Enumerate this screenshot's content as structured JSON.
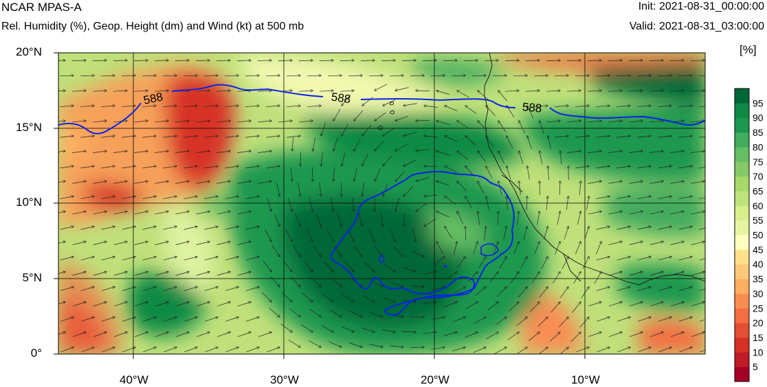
{
  "header": {
    "model": "NCAR MPAS-A",
    "subtitle": "Rel. Humidity (%), Geop. Height (dm) and Wind (kt) at 500 mb",
    "init": "Init: 2021-08-31_00:00:00",
    "valid": "Valid: 2021-08-31_03:00:00"
  },
  "map": {
    "lat_labels": [
      "20°N",
      "15°N",
      "10°N",
      "5°N",
      "0°"
    ],
    "lon_labels": [
      "40°W",
      "30°W",
      "20°W",
      "10°W"
    ],
    "lat_values": [
      20,
      15,
      10,
      5,
      0
    ],
    "lon_values": [
      -40,
      -30,
      -20,
      -10
    ],
    "lon_range": [
      -45,
      -2
    ],
    "lat_range": [
      0,
      20
    ],
    "contour_label": "588",
    "contour_label_count": 3
  },
  "colorbar": {
    "unit": "[%]",
    "levels": [
      "95",
      "90",
      "85",
      "80",
      "75",
      "70",
      "65",
      "60",
      "55",
      "50",
      "45",
      "40",
      "35",
      "30",
      "25",
      "20",
      "15",
      "10",
      "5"
    ],
    "colors": [
      "#a50026",
      "#be1c28",
      "#d73027",
      "#e34f32",
      "#f46d43",
      "#f88d52",
      "#fdae61",
      "#fec87a",
      "#fee08b",
      "#ffffbf",
      "#e6f4a0",
      "#d9ef8b",
      "#bce37c",
      "#a6d96a",
      "#85ca66",
      "#66bd63",
      "#42ab5d",
      "#1a9850",
      "#0f8a45",
      "#006837"
    ]
  },
  "chart_data": {
    "type": "heatmap",
    "title": "Rel. Humidity (%), Geop. Height (dm) and Wind (kt) at 500 mb",
    "xlabel": "",
    "ylabel": "",
    "x_ticks": [
      "40°W",
      "30°W",
      "20°W",
      "10°W"
    ],
    "y_ticks": [
      "0°",
      "5°N",
      "10°N",
      "15°N",
      "20°N"
    ],
    "xlim": [
      -45,
      -2
    ],
    "ylim": [
      0,
      20
    ],
    "colorbar_ticks": [
      5,
      10,
      15,
      20,
      25,
      30,
      35,
      40,
      45,
      50,
      55,
      60,
      65,
      70,
      75,
      80,
      85,
      90,
      95
    ],
    "contour_values": [
      588
    ]
  }
}
